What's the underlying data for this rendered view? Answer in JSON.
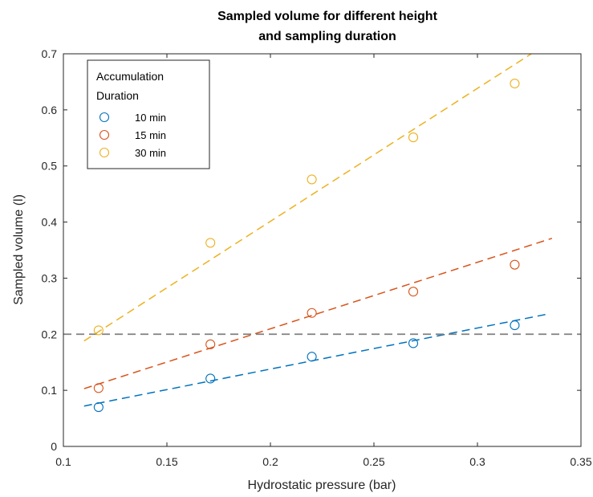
{
  "chart_data": {
    "type": "scatter",
    "title": [
      "Sampled volume for different height",
      "and sampling duration"
    ],
    "xlabel": "Hydrostatic pressure (bar)",
    "ylabel": "Sampled volume (l)",
    "xlim": [
      0.1,
      0.35
    ],
    "ylim": [
      0,
      0.7
    ],
    "xticks": [
      0.1,
      0.15,
      0.2,
      0.25,
      0.3,
      0.35
    ],
    "xtick_labels": [
      "0.1",
      "0.15",
      "0.2",
      "0.25",
      "0.3",
      "0.35"
    ],
    "yticks": [
      0,
      0.1,
      0.2,
      0.3,
      0.4,
      0.5,
      0.6,
      0.7
    ],
    "ytick_labels": [
      "0",
      "0.1",
      "0.2",
      "0.3",
      "0.4",
      "0.5",
      "0.6",
      "0.7"
    ],
    "grid": false,
    "legend": {
      "placement": "top-left",
      "title": [
        "Accumulation",
        "Duration"
      ]
    },
    "series": [
      {
        "name": "10 min",
        "color": "#0072BD",
        "x": [
          0.117,
          0.171,
          0.22,
          0.269,
          0.318
        ],
        "y": [
          0.07,
          0.121,
          0.16,
          0.184,
          0.216
        ],
        "fit": {
          "x": [
            0.11,
            0.334
          ],
          "y": [
            0.072,
            0.236
          ]
        }
      },
      {
        "name": "15 min",
        "color": "#D95319",
        "x": [
          0.117,
          0.171,
          0.22,
          0.269,
          0.318
        ],
        "y": [
          0.104,
          0.182,
          0.238,
          0.276,
          0.324
        ],
        "fit": {
          "x": [
            0.11,
            0.336
          ],
          "y": [
            0.103,
            0.371
          ]
        }
      },
      {
        "name": "30 min",
        "color": "#EDB120",
        "x": [
          0.117,
          0.171,
          0.22,
          0.269,
          0.318
        ],
        "y": [
          0.207,
          0.363,
          0.476,
          0.551,
          0.647
        ],
        "fit": {
          "x": [
            0.11,
            0.326
          ],
          "y": [
            0.188,
            0.7
          ]
        }
      }
    ],
    "reference_line": {
      "y": 0.2,
      "color": "#808080",
      "style": "dashed"
    }
  }
}
